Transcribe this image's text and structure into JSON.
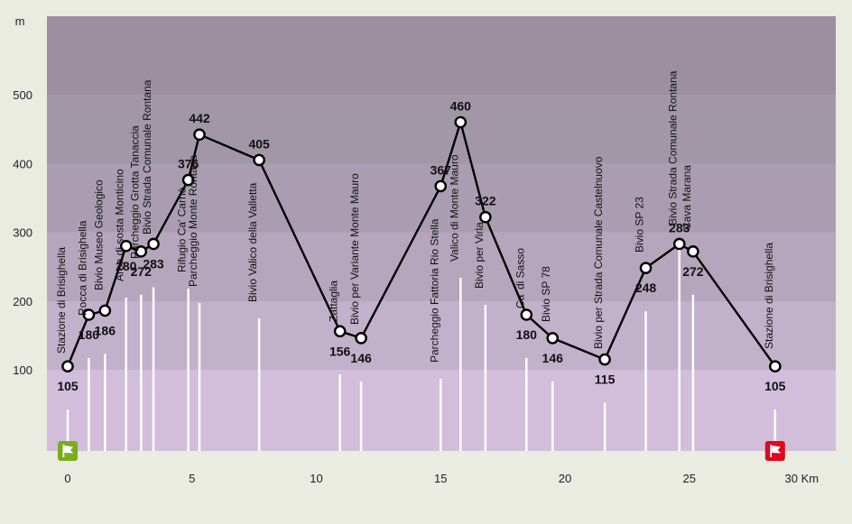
{
  "chart_data": {
    "type": "line",
    "y_unit": "m",
    "x_unit": "Km",
    "y_ticks": [
      100,
      200,
      300,
      400,
      500
    ],
    "x_ticks": [
      "0",
      "5",
      "10",
      "15",
      "20",
      "25",
      "30 Km"
    ],
    "xlim": [
      0,
      30
    ],
    "ylim": [
      -15,
      630
    ],
    "grid": "horizontal bands",
    "start_flag": "green",
    "end_flag": "red",
    "colors": {
      "background": "#eaebe1",
      "bands": [
        "#d2bedb",
        "#c2b1ca",
        "#b6a6bd",
        "#ab9db1",
        "#a297a7",
        "#9b8fa0"
      ],
      "start_flag": "#7aad1e",
      "end_flag": "#e0081b"
    },
    "points": [
      {
        "x": 0.0,
        "y": 105,
        "label": "Stazione di Brisighella"
      },
      {
        "x": 0.85,
        "y": 180,
        "label": "Rocca di Brisighella"
      },
      {
        "x": 1.5,
        "y": 186,
        "label": "Bivio Museo Geologico"
      },
      {
        "x": 2.35,
        "y": 280,
        "label": "Area di sosta Monticino"
      },
      {
        "x": 2.95,
        "y": 272,
        "label": "Parcheggio Grotta Tanaccia"
      },
      {
        "x": 3.45,
        "y": 283,
        "label": "Bivio Strada Comunale Rontana"
      },
      {
        "x": 4.85,
        "y": 376,
        "label": "Rifugio Ca' Carnè"
      },
      {
        "x": 5.3,
        "y": 442,
        "label": "Parcheggio Monte Rontana"
      },
      {
        "x": 7.7,
        "y": 405,
        "label": "Bivio Valico della Valletta"
      },
      {
        "x": 10.95,
        "y": 156,
        "label": "Zattaglia"
      },
      {
        "x": 11.8,
        "y": 146,
        "label": "Bivio per Variante Monte Mauro"
      },
      {
        "x": 15.0,
        "y": 367,
        "label": "Parcheggio Fattoria Rio Stella"
      },
      {
        "x": 15.8,
        "y": 460,
        "label": "Valico di Monte Mauro"
      },
      {
        "x": 16.8,
        "y": 322,
        "label": "Bivio per Virla"
      },
      {
        "x": 18.45,
        "y": 180,
        "label": "Ca' di Sasso"
      },
      {
        "x": 19.5,
        "y": 146,
        "label": "Bivio SP 78"
      },
      {
        "x": 21.6,
        "y": 115,
        "label": "Bivio per Strada Comunale Castelnuovo"
      },
      {
        "x": 23.25,
        "y": 248,
        "label": "Bivio SP 23"
      },
      {
        "x": 24.6,
        "y": 283,
        "label": "Bivio Strada Comunale Rontana"
      },
      {
        "x": 25.15,
        "y": 272,
        "label": "Cava Marana"
      },
      {
        "x": 28.45,
        "y": 105,
        "label": "Stazione di Brisighella"
      }
    ]
  }
}
